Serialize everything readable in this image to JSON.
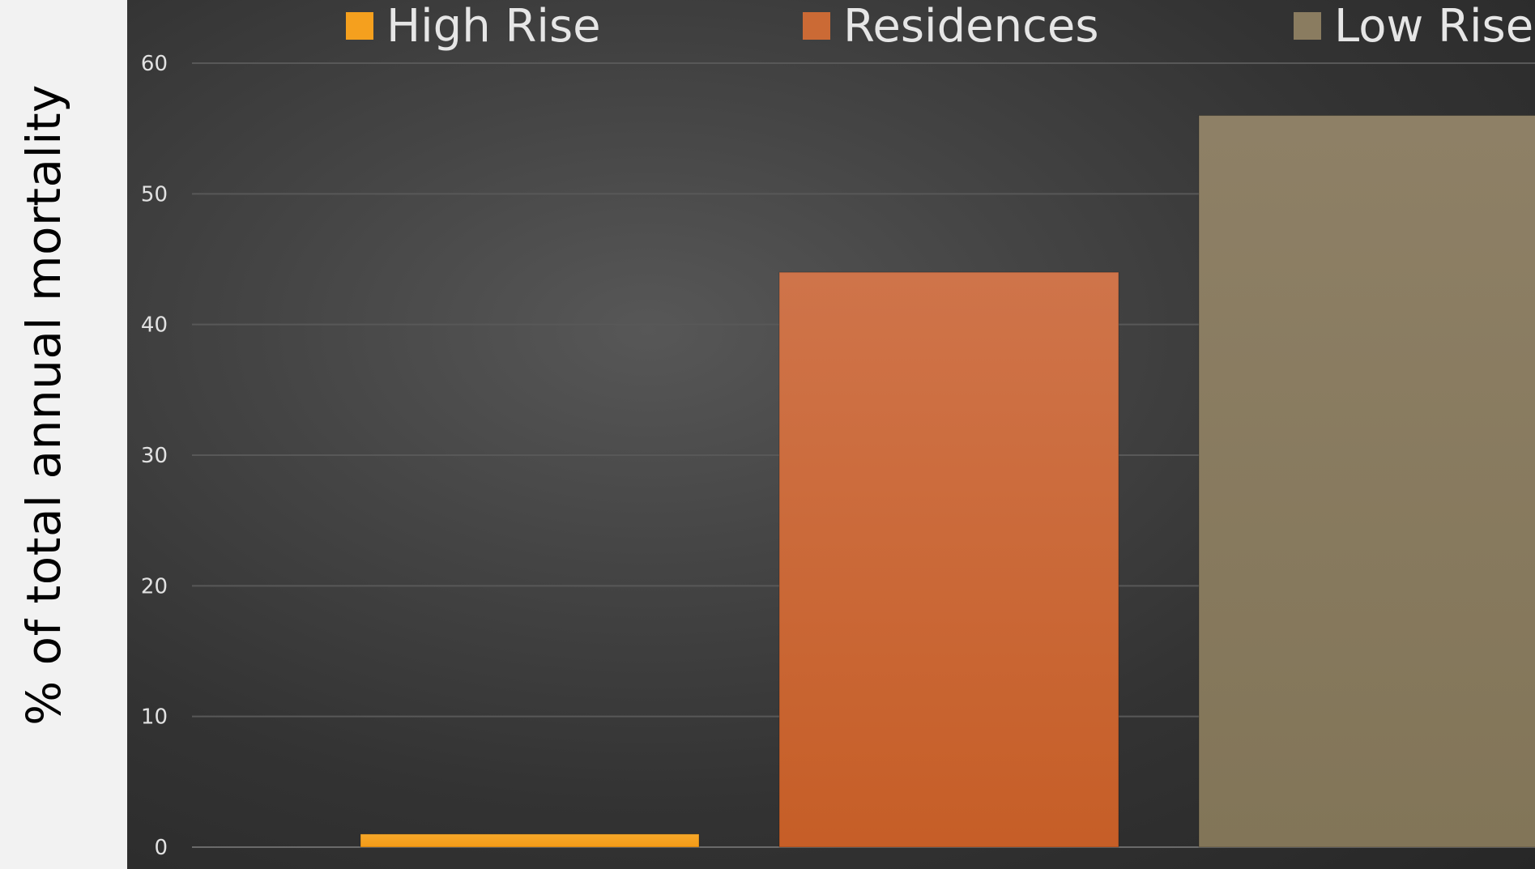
{
  "chart_data": {
    "type": "bar",
    "title": "",
    "xlabel": "",
    "ylabel": "% of total annual mortality",
    "ylim": [
      0,
      60
    ],
    "yticks": [
      0,
      10,
      20,
      30,
      40,
      50,
      60
    ],
    "grid": true,
    "legend_position": "top",
    "series": [
      {
        "name": "High Rise",
        "value": 1,
        "color": "#f5a01e"
      },
      {
        "name": "Residences",
        "value": 44,
        "color": "#cb6a35"
      },
      {
        "name": "Low Rise",
        "value": 56,
        "color": "#8a7c60"
      }
    ]
  }
}
